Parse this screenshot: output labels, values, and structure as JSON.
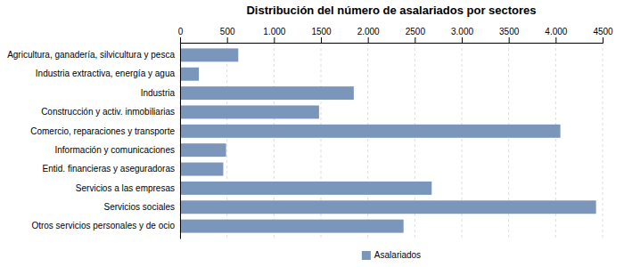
{
  "chart_data": {
    "type": "bar",
    "orientation": "horizontal",
    "title": "Distribución del número de asalariados por sectores",
    "categories": [
      "Agricultura, ganadería, silvicultura y pesca",
      "Industria extractiva, energía y agua",
      "Industria",
      "Construcción y activ. inmobiliarias",
      "Comercio, reparaciones y transporte",
      "Información y comunicaciones",
      "Entid. financieras y aseguradoras",
      "Servicios a las empresas",
      "Servicios sociales",
      "Otros servicios personales y de ocio"
    ],
    "series": [
      {
        "name": "Asalariados",
        "color": "#7b96bb",
        "values": [
          620,
          200,
          1850,
          1480,
          4050,
          490,
          460,
          2680,
          4430,
          2380
        ]
      }
    ],
    "xlim": [
      0,
      4500
    ],
    "xticks": [
      0,
      500,
      {
        "value": 1000,
        "label": "1.000"
      },
      1500,
      {
        "value": 2000,
        "label": "2.000"
      },
      2500,
      {
        "value": 3000,
        "label": "3.000"
      },
      3500,
      {
        "value": 4000,
        "label": "4.000"
      },
      4500
    ],
    "grid": true,
    "legend": "bottom"
  }
}
